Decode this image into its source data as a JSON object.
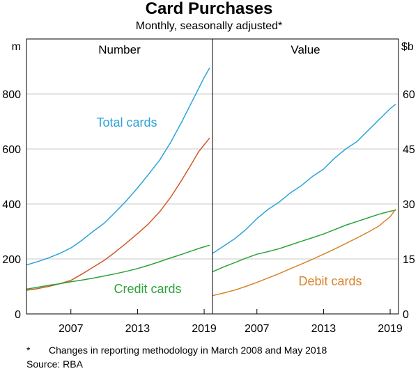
{
  "title": "Card Purchases",
  "subtitle": "Monthly, seasonally adjusted*",
  "footnote": {
    "marker": "*",
    "text": "Changes in reporting methodology in March 2008 and May 2018"
  },
  "source": "Source:   RBA",
  "chart_data": [
    {
      "type": "line",
      "panel": "left",
      "title": "Number",
      "ylabel": "m",
      "ylim": [
        0,
        1000
      ],
      "yticks": [
        0,
        200,
        400,
        600,
        800
      ],
      "xlim": [
        2003.0,
        2019.75
      ],
      "xticks": [
        2007,
        2013,
        2019
      ],
      "xtick_labels": [
        "2007",
        "2013",
        "2019"
      ],
      "series": [
        {
          "name": "Total cards",
          "color": "#2da3d8",
          "x": [
            2003.0,
            2004.0,
            2005.0,
            2006.0,
            2007.0,
            2008.0,
            2009.0,
            2010.0,
            2011.0,
            2012.0,
            2013.0,
            2014.0,
            2015.0,
            2016.0,
            2017.0,
            2018.0,
            2018.5,
            2019.0,
            2019.5
          ],
          "values": [
            178,
            190,
            204,
            220,
            240,
            268,
            300,
            330,
            370,
            412,
            458,
            508,
            560,
            625,
            700,
            780,
            820,
            860,
            895
          ]
        },
        {
          "name": "Debit cards",
          "color": "#d0582a",
          "x": [
            2003.0,
            2004.0,
            2005.0,
            2006.0,
            2007.0,
            2008.0,
            2009.0,
            2010.0,
            2011.0,
            2012.0,
            2013.0,
            2014.0,
            2015.0,
            2016.0,
            2017.0,
            2018.0,
            2018.5,
            2019.0,
            2019.5
          ],
          "values": [
            86,
            92,
            100,
            110,
            122,
            145,
            170,
            195,
            225,
            258,
            292,
            328,
            372,
            425,
            488,
            555,
            590,
            615,
            640
          ]
        },
        {
          "name": "Credit cards",
          "color": "#2aa33a",
          "x": [
            2003.0,
            2004.0,
            2005.0,
            2006.0,
            2007.0,
            2008.0,
            2009.0,
            2010.0,
            2011.0,
            2012.0,
            2013.0,
            2014.0,
            2015.0,
            2016.0,
            2017.0,
            2018.0,
            2018.5,
            2019.0,
            2019.5
          ],
          "values": [
            90,
            97,
            104,
            110,
            117,
            123,
            130,
            138,
            146,
            155,
            165,
            177,
            190,
            204,
            217,
            231,
            238,
            244,
            250
          ]
        }
      ],
      "annotations": [
        "Total cards",
        "Credit cards"
      ]
    },
    {
      "type": "line",
      "panel": "right",
      "title": "Value",
      "ylabel": "$b",
      "ylim": [
        0,
        75
      ],
      "yticks": [
        0,
        15,
        30,
        45,
        60
      ],
      "xlim": [
        2003.0,
        2019.75
      ],
      "xticks": [
        2007,
        2013,
        2019
      ],
      "xtick_labels": [
        "2007",
        "2013",
        "2019"
      ],
      "series": [
        {
          "name": "Total cards",
          "color": "#2da3d8",
          "x": [
            2003.0,
            2004.0,
            2005.0,
            2006.0,
            2007.0,
            2008.0,
            2009.0,
            2010.0,
            2011.0,
            2012.0,
            2013.0,
            2014.0,
            2015.0,
            2016.0,
            2017.0,
            2018.0,
            2018.5,
            2019.0,
            2019.5
          ],
          "values": [
            16.5,
            18.5,
            20.5,
            23.0,
            26.0,
            28.5,
            30.5,
            33.0,
            35.0,
            37.5,
            39.5,
            42.5,
            45.0,
            47.0,
            50.0,
            53.0,
            54.5,
            56.0,
            57.2
          ]
        },
        {
          "name": "Credit cards",
          "color": "#2aa33a",
          "x": [
            2003.0,
            2004.0,
            2005.0,
            2006.0,
            2007.0,
            2008.0,
            2009.0,
            2010.0,
            2011.0,
            2012.0,
            2013.0,
            2014.0,
            2015.0,
            2016.0,
            2017.0,
            2018.0,
            2018.5,
            2019.0,
            2019.5
          ],
          "values": [
            11.5,
            12.8,
            14.0,
            15.2,
            16.3,
            17.0,
            17.8,
            18.8,
            19.8,
            20.8,
            21.8,
            23.0,
            24.2,
            25.2,
            26.2,
            27.2,
            27.6,
            28.0,
            28.3
          ]
        },
        {
          "name": "Debit cards",
          "color": "#d9822b",
          "x": [
            2003.0,
            2004.0,
            2005.0,
            2006.0,
            2007.0,
            2008.0,
            2009.0,
            2010.0,
            2011.0,
            2012.0,
            2013.0,
            2014.0,
            2015.0,
            2016.0,
            2017.0,
            2018.0,
            2018.5,
            2019.0,
            2019.5
          ],
          "values": [
            5.0,
            5.7,
            6.5,
            7.5,
            8.6,
            9.8,
            11.0,
            12.3,
            13.6,
            14.9,
            16.3,
            17.7,
            19.2,
            20.7,
            22.3,
            24.0,
            25.3,
            26.5,
            28.6
          ]
        }
      ],
      "annotations": [
        "Debit cards"
      ]
    }
  ]
}
